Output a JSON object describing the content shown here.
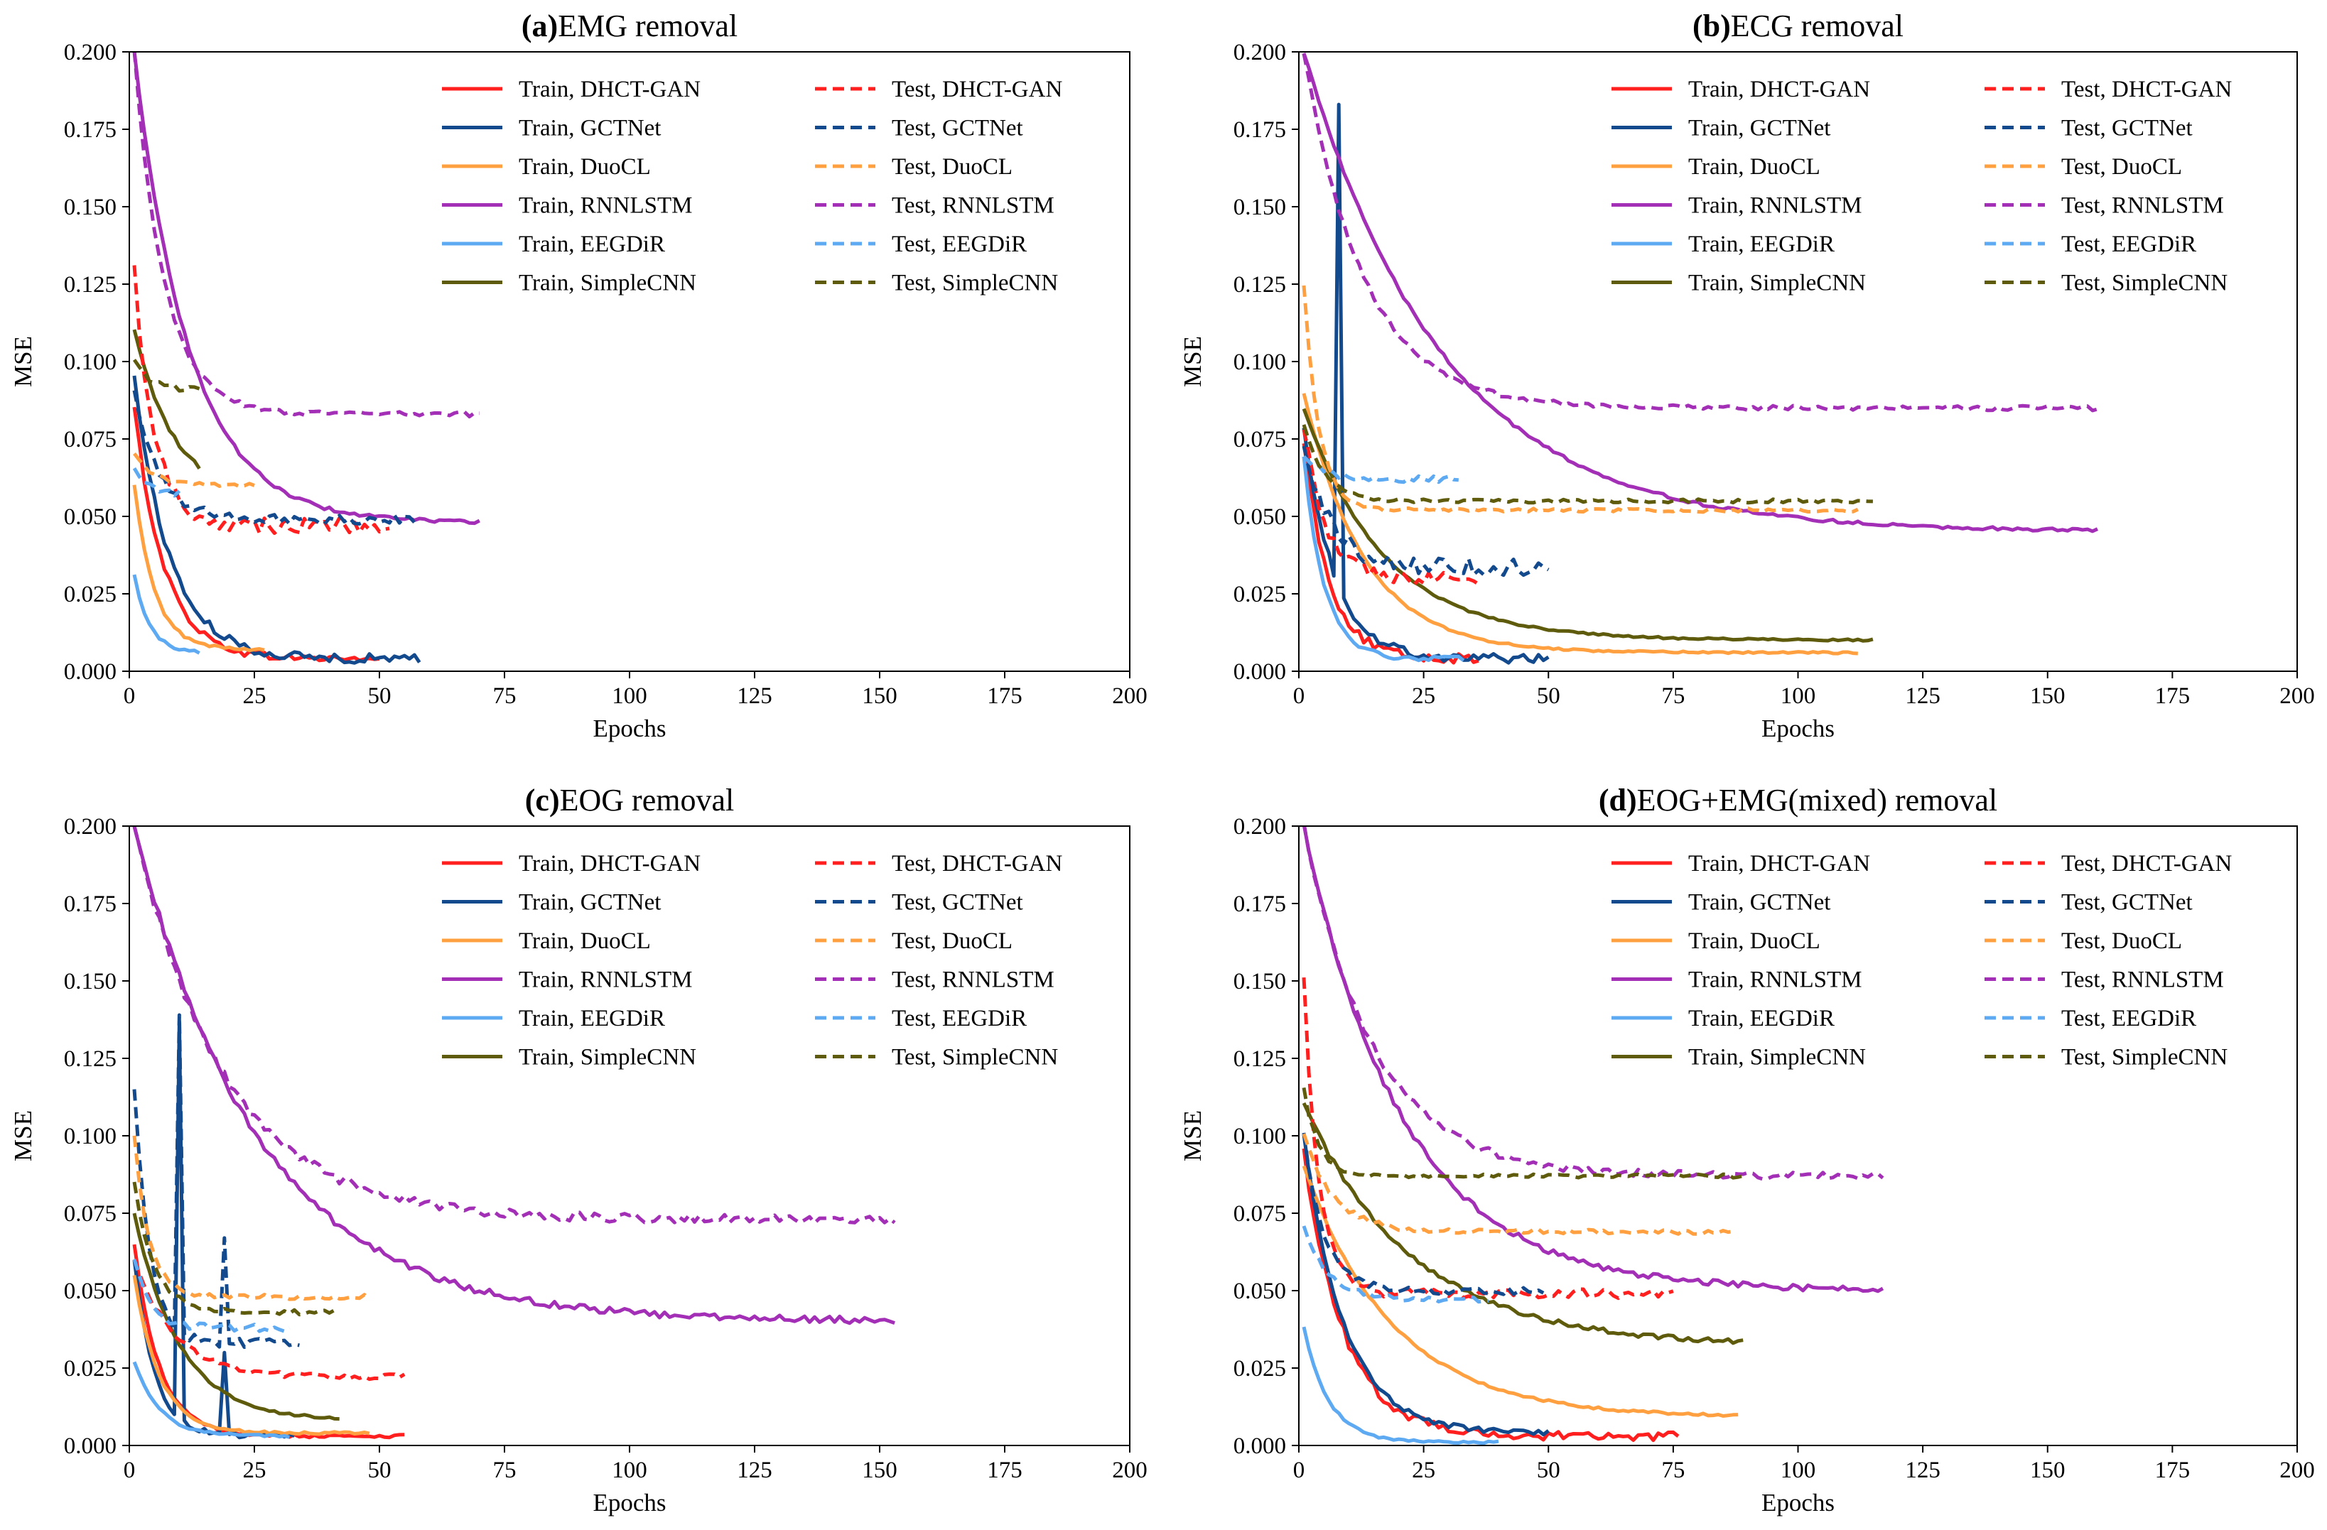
{
  "figure": {
    "colors": {
      "DHCT-GAN": "#ff1f1f",
      "GCTNet": "#134a8e",
      "DuoCL": "#ffa040",
      "RNNLSTM": "#a32fb6",
      "EEGDiR": "#5eaaf2",
      "SimpleCNN": "#5f5b0d"
    }
  },
  "chart_data": [
    {
      "type": "line",
      "label": "(a)",
      "title": "EMG removal",
      "xlabel": "Epochs",
      "ylabel": "MSE",
      "xlim": [
        0,
        200
      ],
      "ylim": [
        0,
        0.2
      ],
      "xticks": [
        "0",
        "25",
        "50",
        "75",
        "100",
        "125",
        "150",
        "175",
        "200"
      ],
      "yticks": [
        "0.000",
        "0.025",
        "0.050",
        "0.075",
        "0.100",
        "0.125",
        "0.150",
        "0.175",
        "0.200"
      ],
      "legend_position": "top-right",
      "series": [
        {
          "name": "Train, DHCT-GAN",
          "model": "DHCT-GAN",
          "style": "solid",
          "epochs": 50,
          "start": 0.085,
          "end": 0.004,
          "rate": 6,
          "noise": 0.0012
        },
        {
          "name": "Train, GCTNet",
          "model": "GCTNet",
          "style": "solid",
          "epochs": 58,
          "start": 0.095,
          "end": 0.004,
          "rate": 7,
          "noise": 0.0015
        },
        {
          "name": "Train, DuoCL",
          "model": "DuoCL",
          "style": "solid",
          "epochs": 27,
          "start": 0.06,
          "end": 0.007,
          "rate": 4,
          "noise": 0.0005
        },
        {
          "name": "Train, RNNLSTM",
          "model": "RNNLSTM",
          "style": "solid",
          "epochs": 70,
          "start": 0.2,
          "end": 0.048,
          "rate": 11,
          "noise": 0.0006
        },
        {
          "name": "Train, EEGDiR",
          "model": "EEGDiR",
          "style": "solid",
          "epochs": 14,
          "start": 0.031,
          "end": 0.006,
          "rate": 3,
          "noise": 0.0005
        },
        {
          "name": "Train, SimpleCNN",
          "model": "SimpleCNN",
          "style": "solid",
          "epochs": 14,
          "start": 0.11,
          "end": 0.055,
          "rate": 8,
          "noise": 0.0008
        },
        {
          "name": "Test, DHCT-GAN",
          "model": "DHCT-GAN",
          "style": "dashed",
          "epochs": 52,
          "start": 0.13,
          "end": 0.047,
          "rate": 4,
          "noise": 0.0025
        },
        {
          "name": "Test, GCTNet",
          "model": "GCTNet",
          "style": "dashed",
          "epochs": 58,
          "start": 0.09,
          "end": 0.049,
          "rate": 5,
          "noise": 0.0015
        },
        {
          "name": "Test, DuoCL",
          "model": "DuoCL",
          "style": "dashed",
          "epochs": 25,
          "start": 0.07,
          "end": 0.06,
          "rate": 4,
          "noise": 0.0006
        },
        {
          "name": "Test, RNNLSTM",
          "model": "RNNLSTM",
          "style": "dashed",
          "epochs": 70,
          "start": 0.2,
          "end": 0.083,
          "rate": 6,
          "noise": 0.0008
        },
        {
          "name": "Test, EEGDiR",
          "model": "EEGDiR",
          "style": "dashed",
          "epochs": 10,
          "start": 0.065,
          "end": 0.057,
          "rate": 3,
          "noise": 0.001
        },
        {
          "name": "Test, SimpleCNN",
          "model": "SimpleCNN",
          "style": "dashed",
          "epochs": 14,
          "start": 0.1,
          "end": 0.091,
          "rate": 3,
          "noise": 0.001
        }
      ]
    },
    {
      "type": "line",
      "label": "(b)",
      "title": "ECG removal",
      "xlabel": "Epochs",
      "ylabel": "MSE",
      "xlim": [
        0,
        200
      ],
      "ylim": [
        0,
        0.2
      ],
      "xticks": [
        "0",
        "25",
        "50",
        "75",
        "100",
        "125",
        "150",
        "175",
        "200"
      ],
      "yticks": [
        "0.000",
        "0.025",
        "0.050",
        "0.075",
        "0.100",
        "0.125",
        "0.150",
        "0.175",
        "0.200"
      ],
      "legend_position": "top-right",
      "series": [
        {
          "name": "Train, DHCT-GAN",
          "model": "DHCT-GAN",
          "style": "solid",
          "epochs": 36,
          "start": 0.075,
          "end": 0.004,
          "rate": 5,
          "noise": 0.0015
        },
        {
          "name": "Train, GCTNet",
          "model": "GCTNet",
          "style": "solid",
          "epochs": 50,
          "start": 0.08,
          "end": 0.004,
          "rate": 6,
          "noise": 0.0015,
          "spikes": [
            [
              8,
              0.183
            ]
          ]
        },
        {
          "name": "Train, DuoCL",
          "model": "DuoCL",
          "style": "solid",
          "epochs": 112,
          "start": 0.09,
          "end": 0.006,
          "rate": 12,
          "noise": 0.0003
        },
        {
          "name": "Train, RNNLSTM",
          "model": "RNNLSTM",
          "style": "solid",
          "epochs": 160,
          "start": 0.2,
          "end": 0.045,
          "rate": 28,
          "noise": 0.0005
        },
        {
          "name": "Train, EEGDiR",
          "model": "EEGDiR",
          "style": "solid",
          "epochs": 33,
          "start": 0.07,
          "end": 0.004,
          "rate": 4,
          "noise": 0.0008
        },
        {
          "name": "Train, SimpleCNN",
          "model": "SimpleCNN",
          "style": "solid",
          "epochs": 115,
          "start": 0.085,
          "end": 0.01,
          "rate": 16,
          "noise": 0.0003
        },
        {
          "name": "Test, DHCT-GAN",
          "model": "DHCT-GAN",
          "style": "dashed",
          "epochs": 36,
          "start": 0.08,
          "end": 0.03,
          "rate": 4,
          "noise": 0.0025
        },
        {
          "name": "Test, GCTNet",
          "model": "GCTNet",
          "style": "dashed",
          "epochs": 50,
          "start": 0.075,
          "end": 0.034,
          "rate": 5,
          "noise": 0.003
        },
        {
          "name": "Test, DuoCL",
          "model": "DuoCL",
          "style": "dashed",
          "epochs": 112,
          "start": 0.125,
          "end": 0.052,
          "rate": 3,
          "noise": 0.0006
        },
        {
          "name": "Test, RNNLSTM",
          "model": "RNNLSTM",
          "style": "dashed",
          "epochs": 160,
          "start": 0.2,
          "end": 0.085,
          "rate": 12,
          "noise": 0.0008
        },
        {
          "name": "Test, EEGDiR",
          "model": "EEGDiR",
          "style": "dashed",
          "epochs": 32,
          "start": 0.07,
          "end": 0.062,
          "rate": 4,
          "noise": 0.001
        },
        {
          "name": "Test, SimpleCNN",
          "model": "SimpleCNN",
          "style": "dashed",
          "epochs": 115,
          "start": 0.08,
          "end": 0.055,
          "rate": 4,
          "noise": 0.0006
        }
      ]
    },
    {
      "type": "line",
      "label": "(c)",
      "title": "EOG removal",
      "xlabel": "Epochs",
      "ylabel": "MSE",
      "xlim": [
        0,
        200
      ],
      "ylim": [
        0,
        0.2
      ],
      "xticks": [
        "0",
        "25",
        "50",
        "75",
        "100",
        "125",
        "150",
        "175",
        "200"
      ],
      "yticks": [
        "0.000",
        "0.025",
        "0.050",
        "0.075",
        "0.100",
        "0.125",
        "0.150",
        "0.175",
        "0.200"
      ],
      "legend_position": "top-right",
      "series": [
        {
          "name": "Train, DHCT-GAN",
          "model": "DHCT-GAN",
          "style": "solid",
          "epochs": 55,
          "start": 0.065,
          "end": 0.003,
          "rate": 5,
          "noise": 0.0005
        },
        {
          "name": "Train, GCTNet",
          "model": "GCTNet",
          "style": "solid",
          "epochs": 33,
          "start": 0.06,
          "end": 0.003,
          "rate": 4,
          "noise": 0.0008,
          "spikes": [
            [
              10,
              0.137
            ],
            [
              19,
              0.03
            ]
          ]
        },
        {
          "name": "Train, DuoCL",
          "model": "DuoCL",
          "style": "solid",
          "epochs": 48,
          "start": 0.055,
          "end": 0.004,
          "rate": 5,
          "noise": 0.0004
        },
        {
          "name": "Train, RNNLSTM",
          "model": "RNNLSTM",
          "style": "solid",
          "epochs": 153,
          "start": 0.2,
          "end": 0.04,
          "rate": 25,
          "noise": 0.0012
        },
        {
          "name": "Train, EEGDiR",
          "model": "EEGDiR",
          "style": "solid",
          "epochs": 32,
          "start": 0.027,
          "end": 0.003,
          "rate": 5,
          "noise": 0.0004
        },
        {
          "name": "Train, SimpleCNN",
          "model": "SimpleCNN",
          "style": "solid",
          "epochs": 42,
          "start": 0.075,
          "end": 0.008,
          "rate": 9,
          "noise": 0.0004
        },
        {
          "name": "Test, DHCT-GAN",
          "model": "DHCT-GAN",
          "style": "dashed",
          "epochs": 55,
          "start": 0.06,
          "end": 0.022,
          "rate": 8,
          "noise": 0.001
        },
        {
          "name": "Test, GCTNet",
          "model": "GCTNet",
          "style": "dashed",
          "epochs": 34,
          "start": 0.115,
          "end": 0.033,
          "rate": 3,
          "noise": 0.0015,
          "spikes": [
            [
              10,
              0.139
            ],
            [
              19,
              0.067
            ]
          ]
        },
        {
          "name": "Test, DuoCL",
          "model": "DuoCL",
          "style": "dashed",
          "epochs": 48,
          "start": 0.1,
          "end": 0.048,
          "rate": 3,
          "noise": 0.0008
        },
        {
          "name": "Test, RNNLSTM",
          "model": "RNNLSTM",
          "style": "dashed",
          "epochs": 153,
          "start": 0.2,
          "end": 0.073,
          "rate": 18,
          "noise": 0.0015
        },
        {
          "name": "Test, EEGDiR",
          "model": "EEGDiR",
          "style": "dashed",
          "epochs": 32,
          "start": 0.06,
          "end": 0.038,
          "rate": 3,
          "noise": 0.0012
        },
        {
          "name": "Test, SimpleCNN",
          "model": "SimpleCNN",
          "style": "dashed",
          "epochs": 42,
          "start": 0.085,
          "end": 0.043,
          "rate": 4,
          "noise": 0.0008
        }
      ]
    },
    {
      "type": "line",
      "label": "(d)",
      "title": "EOG+EMG(mixed) removal",
      "xlabel": "Epochs",
      "ylabel": "MSE",
      "xlim": [
        0,
        200
      ],
      "ylim": [
        0,
        0.2
      ],
      "xticks": [
        "0",
        "25",
        "50",
        "75",
        "100",
        "125",
        "150",
        "175",
        "200"
      ],
      "yticks": [
        "0.000",
        "0.025",
        "0.050",
        "0.075",
        "0.100",
        "0.125",
        "0.150",
        "0.175",
        "0.200"
      ],
      "legend_position": "top-right",
      "series": [
        {
          "name": "Train, DHCT-GAN",
          "model": "DHCT-GAN",
          "style": "solid",
          "epochs": 76,
          "start": 0.095,
          "end": 0.003,
          "rate": 8,
          "noise": 0.0015
        },
        {
          "name": "Train, GCTNet",
          "model": "GCTNet",
          "style": "solid",
          "epochs": 50,
          "start": 0.1,
          "end": 0.004,
          "rate": 8,
          "noise": 0.0008
        },
        {
          "name": "Train, DuoCL",
          "model": "DuoCL",
          "style": "solid",
          "epochs": 88,
          "start": 0.09,
          "end": 0.009,
          "rate": 18,
          "noise": 0.0004
        },
        {
          "name": "Train, RNNLSTM",
          "model": "RNNLSTM",
          "style": "solid",
          "epochs": 117,
          "start": 0.2,
          "end": 0.05,
          "rate": 20,
          "noise": 0.001
        },
        {
          "name": "Train, EEGDiR",
          "model": "EEGDiR",
          "style": "solid",
          "epochs": 40,
          "start": 0.038,
          "end": 0.001,
          "rate": 5,
          "noise": 0.0004
        },
        {
          "name": "Train, SimpleCNN",
          "model": "SimpleCNN",
          "style": "solid",
          "epochs": 89,
          "start": 0.11,
          "end": 0.032,
          "rate": 22,
          "noise": 0.0008
        },
        {
          "name": "Test, DHCT-GAN",
          "model": "DHCT-GAN",
          "style": "dashed",
          "epochs": 75,
          "start": 0.15,
          "end": 0.049,
          "rate": 3,
          "noise": 0.0015
        },
        {
          "name": "Test, GCTNet",
          "model": "GCTNet",
          "style": "dashed",
          "epochs": 49,
          "start": 0.1,
          "end": 0.05,
          "rate": 4,
          "noise": 0.0012
        },
        {
          "name": "Test, DuoCL",
          "model": "DuoCL",
          "style": "dashed",
          "epochs": 87,
          "start": 0.1,
          "end": 0.069,
          "rate": 6,
          "noise": 0.0008
        },
        {
          "name": "Test, RNNLSTM",
          "model": "RNNLSTM",
          "style": "dashed",
          "epochs": 117,
          "start": 0.2,
          "end": 0.087,
          "rate": 14,
          "noise": 0.0012
        },
        {
          "name": "Test, EEGDiR",
          "model": "EEGDiR",
          "style": "dashed",
          "epochs": 38,
          "start": 0.07,
          "end": 0.047,
          "rate": 5,
          "noise": 0.001
        },
        {
          "name": "Test, SimpleCNN",
          "model": "SimpleCNN",
          "style": "dashed",
          "epochs": 89,
          "start": 0.115,
          "end": 0.087,
          "rate": 3,
          "noise": 0.0006
        }
      ]
    }
  ]
}
